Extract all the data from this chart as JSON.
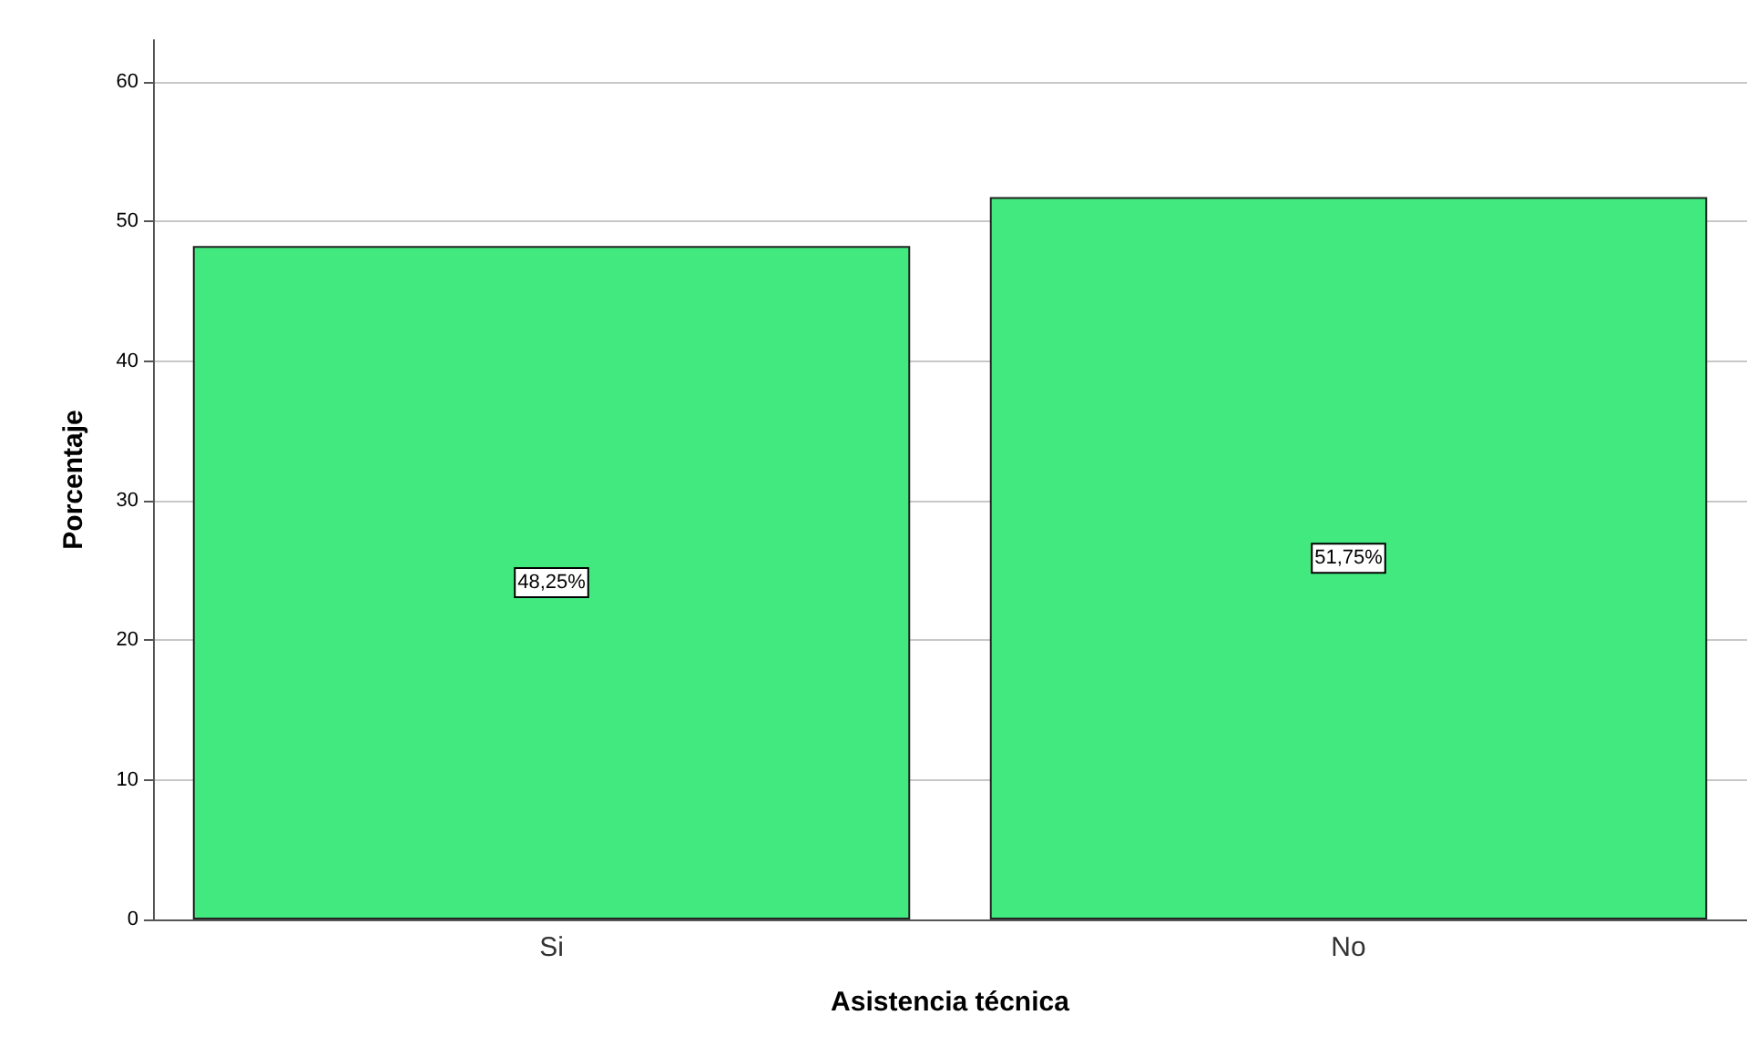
{
  "chart_data": {
    "type": "bar",
    "xlabel": "Asistencia técnica",
    "ylabel": "Porcentaje",
    "categories": [
      "Si",
      "No"
    ],
    "values": [
      48.25,
      51.75
    ],
    "value_labels": [
      "48,25%",
      "51,75%"
    ],
    "color": "#42e97f",
    "ylim": [
      0,
      63
    ],
    "yticks": [
      0,
      10,
      20,
      30,
      40,
      50,
      60
    ],
    "grid": "y"
  }
}
